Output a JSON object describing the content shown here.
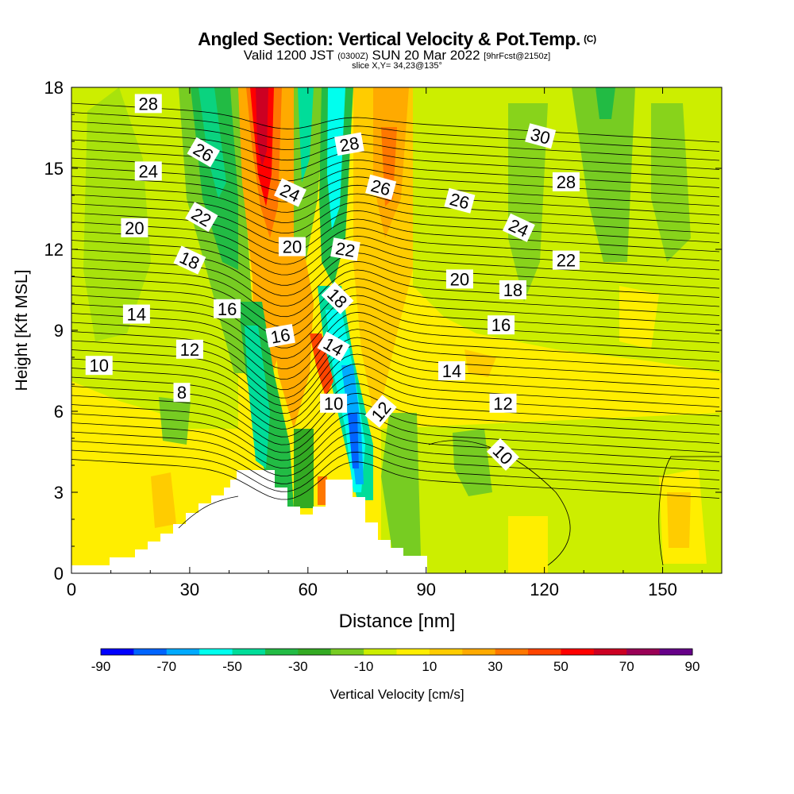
{
  "title": {
    "main": "Angled Section: Vertical Velocity & Pot.Temp.",
    "mark": "(C)"
  },
  "subtitle": {
    "valid": "Valid 1200 JST",
    "zulu": "(0300Z)",
    "date": "SUN 20 Mar 2022",
    "forecast": "[9hrFcst@2150z]"
  },
  "slice": "slice X,Y= 34,23@135°",
  "chart_data": {
    "type": "heatmap",
    "xlabel": "Distance [nm]",
    "ylabel": "Height [Kft MSL]",
    "xlim": [
      0,
      165
    ],
    "ylim": [
      0,
      18
    ],
    "xticks": [
      0,
      30,
      60,
      90,
      120,
      150
    ],
    "yticks": [
      0,
      3,
      6,
      9,
      12,
      15,
      18
    ],
    "colorbar": {
      "label": "Vertical Velocity [cm/s]",
      "ticks": [
        "-90",
        "-70",
        "-50",
        "-30",
        "-10",
        "10",
        "30",
        "50",
        "70",
        "90"
      ],
      "colors": [
        "#0000ff",
        "#0064ff",
        "#00aaff",
        "#00ffee",
        "#00dd99",
        "#22bb44",
        "#33aa22",
        "#77cc22",
        "#ccee00",
        "#ffee00",
        "#ffcc00",
        "#ffaa00",
        "#ff7700",
        "#ff4400",
        "#ff0000",
        "#cc0022",
        "#990055",
        "#660088"
      ]
    },
    "contour_labels": [
      {
        "text": "28",
        "x": 19.5,
        "y": 17.4,
        "angle": 0
      },
      {
        "text": "26",
        "x": 33.5,
        "y": 15.6,
        "angle": 30
      },
      {
        "text": "24",
        "x": 19.5,
        "y": 14.9,
        "angle": 0
      },
      {
        "text": "22",
        "x": 33,
        "y": 13.2,
        "angle": 30
      },
      {
        "text": "20",
        "x": 16,
        "y": 12.8,
        "angle": 0
      },
      {
        "text": "18",
        "x": 30,
        "y": 11.6,
        "angle": 25
      },
      {
        "text": "16",
        "x": 39.5,
        "y": 9.8,
        "angle": 0
      },
      {
        "text": "14",
        "x": 16.5,
        "y": 9.6,
        "angle": 0
      },
      {
        "text": "12",
        "x": 30,
        "y": 8.3,
        "angle": 0
      },
      {
        "text": "10",
        "x": 7,
        "y": 7.7,
        "angle": 0
      },
      {
        "text": "8",
        "x": 28,
        "y": 6.7,
        "angle": 0
      },
      {
        "text": "24",
        "x": 55.5,
        "y": 14.1,
        "angle": 25
      },
      {
        "text": "20",
        "x": 56,
        "y": 12.1,
        "angle": 0
      },
      {
        "text": "16",
        "x": 53,
        "y": 8.8,
        "angle": -10
      },
      {
        "text": "28",
        "x": 70.5,
        "y": 15.9,
        "angle": -10
      },
      {
        "text": "22",
        "x": 69.5,
        "y": 12.0,
        "angle": 10
      },
      {
        "text": "18",
        "x": 67.5,
        "y": 10.2,
        "angle": 45
      },
      {
        "text": "14",
        "x": 66.5,
        "y": 8.4,
        "angle": 30
      },
      {
        "text": "10",
        "x": 66.5,
        "y": 6.3,
        "angle": 0
      },
      {
        "text": "12",
        "x": 78.5,
        "y": 6.0,
        "angle": -50
      },
      {
        "text": "26",
        "x": 78.5,
        "y": 14.3,
        "angle": 15
      },
      {
        "text": "26",
        "x": 98.5,
        "y": 13.8,
        "angle": 15
      },
      {
        "text": "20",
        "x": 98.5,
        "y": 10.9,
        "angle": 0
      },
      {
        "text": "14",
        "x": 96.5,
        "y": 7.5,
        "angle": 0
      },
      {
        "text": "30",
        "x": 119,
        "y": 16.2,
        "angle": 15
      },
      {
        "text": "28",
        "x": 125.5,
        "y": 14.5,
        "angle": 0
      },
      {
        "text": "24",
        "x": 113.5,
        "y": 12.8,
        "angle": 25
      },
      {
        "text": "22",
        "x": 125.5,
        "y": 11.6,
        "angle": 0
      },
      {
        "text": "18",
        "x": 112,
        "y": 10.5,
        "angle": 0
      },
      {
        "text": "16",
        "x": 109,
        "y": 9.2,
        "angle": 0
      },
      {
        "text": "12",
        "x": 109.5,
        "y": 6.3,
        "angle": 0
      },
      {
        "text": "10",
        "x": 109.5,
        "y": 4.4,
        "angle": 45
      }
    ]
  }
}
